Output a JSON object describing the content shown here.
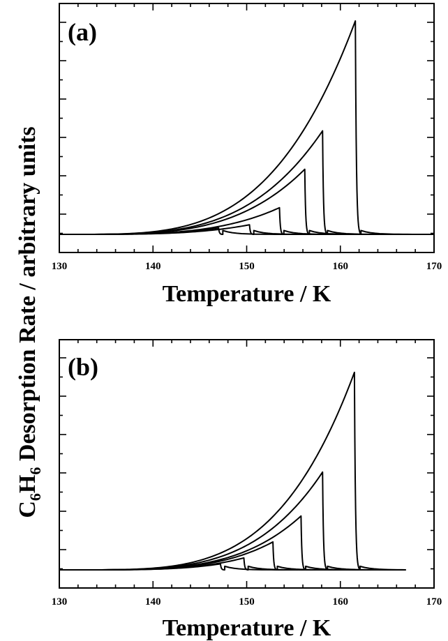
{
  "ylabel": {
    "prefix_c": "C",
    "sub_1": "6",
    "mid_h": "H",
    "sub_2": "6",
    "rest": " Desorption Rate / arbitrary units"
  },
  "chart_data": [
    {
      "panel": "(a)",
      "type": "line",
      "xlabel": "Temperature / K",
      "xlim": [
        130,
        170
      ],
      "ylim": [
        0,
        1
      ],
      "x_ticks": [
        130,
        140,
        150,
        160,
        170
      ],
      "x_tick_labels": [
        "130",
        "140",
        "150",
        "160",
        "170"
      ],
      "grid": false,
      "legend": "none",
      "y_tick_labels_shown": false,
      "envelope": {
        "T0": 131,
        "Ta": 152,
        "y_at_Ta": 0.05,
        "exponent": 3.6
      },
      "series": [
        {
          "peak_T": 147.0,
          "peak_y": 0.03,
          "end_T": 170
        },
        {
          "peak_T": 150.3,
          "peak_y": 0.045,
          "end_T": 170
        },
        {
          "peak_T": 153.5,
          "peak_y": 0.125,
          "end_T": 170
        },
        {
          "peak_T": 156.2,
          "peak_y": 0.305,
          "end_T": 170
        },
        {
          "peak_T": 158.1,
          "peak_y": 0.485,
          "end_T": 170
        },
        {
          "peak_T": 161.6,
          "peak_y": 1.0,
          "end_T": 170
        }
      ]
    },
    {
      "panel": "(b)",
      "type": "line",
      "xlabel": "Temperature / K",
      "xlim": [
        130,
        170
      ],
      "ylim": [
        0,
        1
      ],
      "x_ticks": [
        130,
        140,
        150,
        160,
        170
      ],
      "x_tick_labels": [
        "130",
        "140",
        "150",
        "160",
        "170"
      ],
      "grid": false,
      "legend": "none",
      "y_tick_labels_shown": false,
      "envelope": {
        "T0": 131,
        "Ta": 152,
        "y_at_Ta": 0.05,
        "exponent": 3.9
      },
      "series": [
        {
          "peak_T": 147.2,
          "peak_y": 0.03,
          "end_T": 155.5
        },
        {
          "peak_T": 149.7,
          "peak_y": 0.06,
          "end_T": 159.5
        },
        {
          "peak_T": 152.8,
          "peak_y": 0.14,
          "end_T": 162.0
        },
        {
          "peak_T": 155.8,
          "peak_y": 0.27,
          "end_T": 164.5
        },
        {
          "peak_T": 158.1,
          "peak_y": 0.49,
          "end_T": 167.0
        },
        {
          "peak_T": 161.5,
          "peak_y": 0.99,
          "end_T": 167.0
        }
      ]
    }
  ]
}
